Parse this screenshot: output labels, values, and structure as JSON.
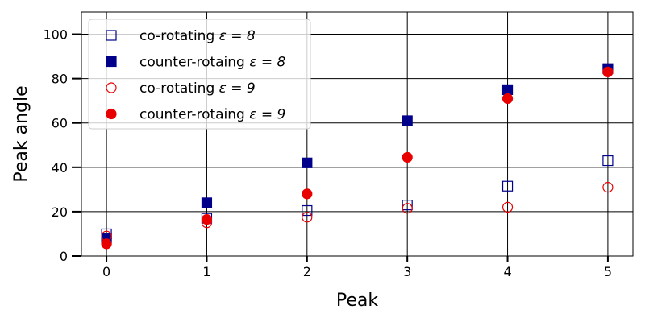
{
  "chart_data": {
    "type": "scatter",
    "title": "",
    "xlabel": "Peak",
    "ylabel": "Peak angle",
    "x": [
      0,
      1,
      2,
      3,
      4,
      5
    ],
    "xlim": [
      -0.25,
      5.25
    ],
    "ylim": [
      0,
      110
    ],
    "xticks": [
      "0",
      "1",
      "2",
      "3",
      "4",
      "5"
    ],
    "yticks": [
      "0",
      "20",
      "40",
      "60",
      "80",
      "100"
    ],
    "grid": true,
    "legend_position": "top-left",
    "series": [
      {
        "name": "co-rotating ε = 8",
        "label_prefix": "co-rotating ",
        "label_math": "ε = 8",
        "marker": "square-open",
        "color": "#00008b",
        "values": [
          10,
          17,
          20.5,
          23,
          31.5,
          43
        ]
      },
      {
        "name": "counter-rotaing ε = 8",
        "label_prefix": "counter-rotaing ",
        "label_math": "ε = 8",
        "marker": "square-filled",
        "color": "#00008b",
        "values": [
          8,
          24,
          42,
          61,
          75,
          84.5
        ]
      },
      {
        "name": "co-rotating ε = 9",
        "label_prefix": "co-rotating ",
        "label_math": "ε = 9",
        "marker": "circle-open",
        "color": "#e80000",
        "values": [
          9,
          15,
          17.5,
          21.5,
          22,
          31
        ]
      },
      {
        "name": "counter-rotaing ε = 9",
        "label_prefix": "counter-rotaing ",
        "label_math": "ε = 9",
        "marker": "circle-filled",
        "color": "#e80000",
        "values": [
          5.5,
          16.5,
          28,
          44.5,
          71,
          83
        ]
      }
    ]
  }
}
